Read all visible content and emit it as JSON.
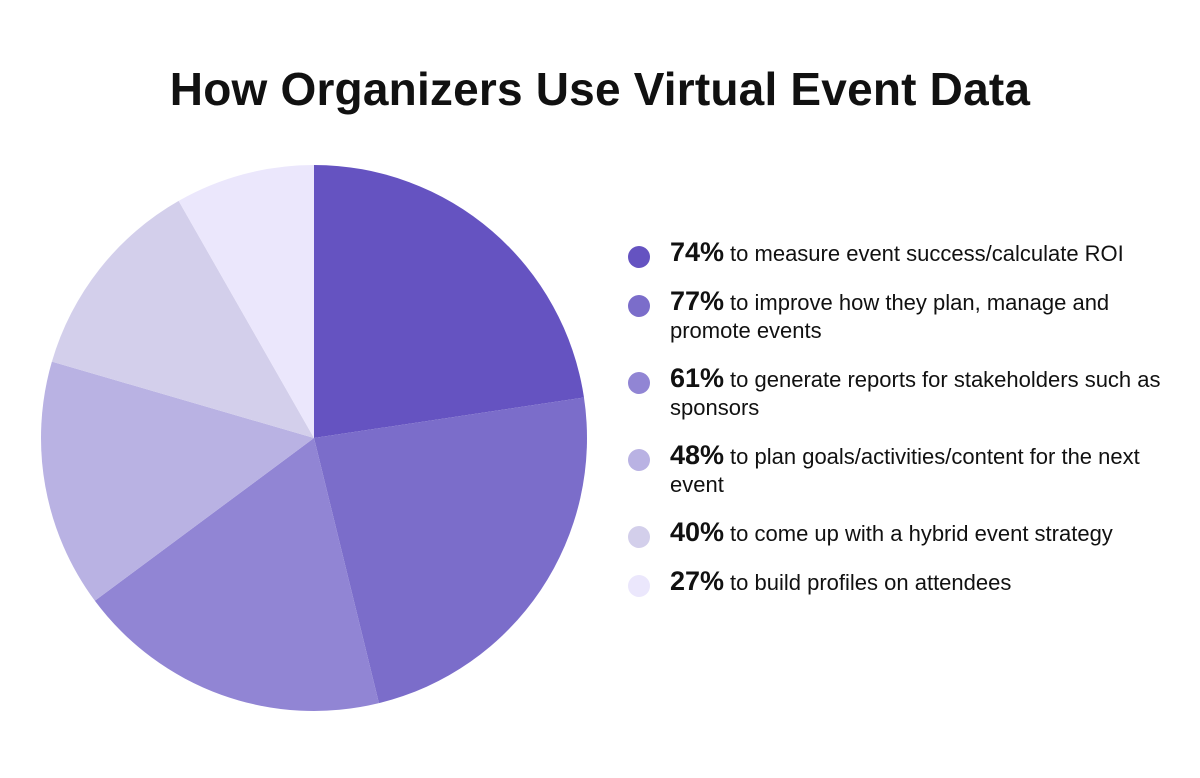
{
  "chart_data": {
    "type": "pie",
    "title": "How Organizers Use Virtual Event Data",
    "legend_placement": "right",
    "slices": [
      {
        "value": 74,
        "percent_label": "74%",
        "label": "to measure event success/calculate ROI",
        "color": "#6553c1"
      },
      {
        "value": 77,
        "percent_label": "77%",
        "label": "to improve how they plan, manage and promote events",
        "color": "#7b6dca"
      },
      {
        "value": 61,
        "percent_label": "61%",
        "label": "to generate reports for stakeholders such as sponsors",
        "color": "#9185d4"
      },
      {
        "value": 48,
        "percent_label": "48%",
        "label": "to plan goals/activities/content for the next event",
        "color": "#b9b2e3"
      },
      {
        "value": 40,
        "percent_label": "40%",
        "label": "to come up with a hybrid event strategy",
        "color": "#d3cfeb"
      },
      {
        "value": 27,
        "percent_label": "27%",
        "label": "to build profiles on attendees",
        "color": "#ebe7fc"
      }
    ]
  }
}
